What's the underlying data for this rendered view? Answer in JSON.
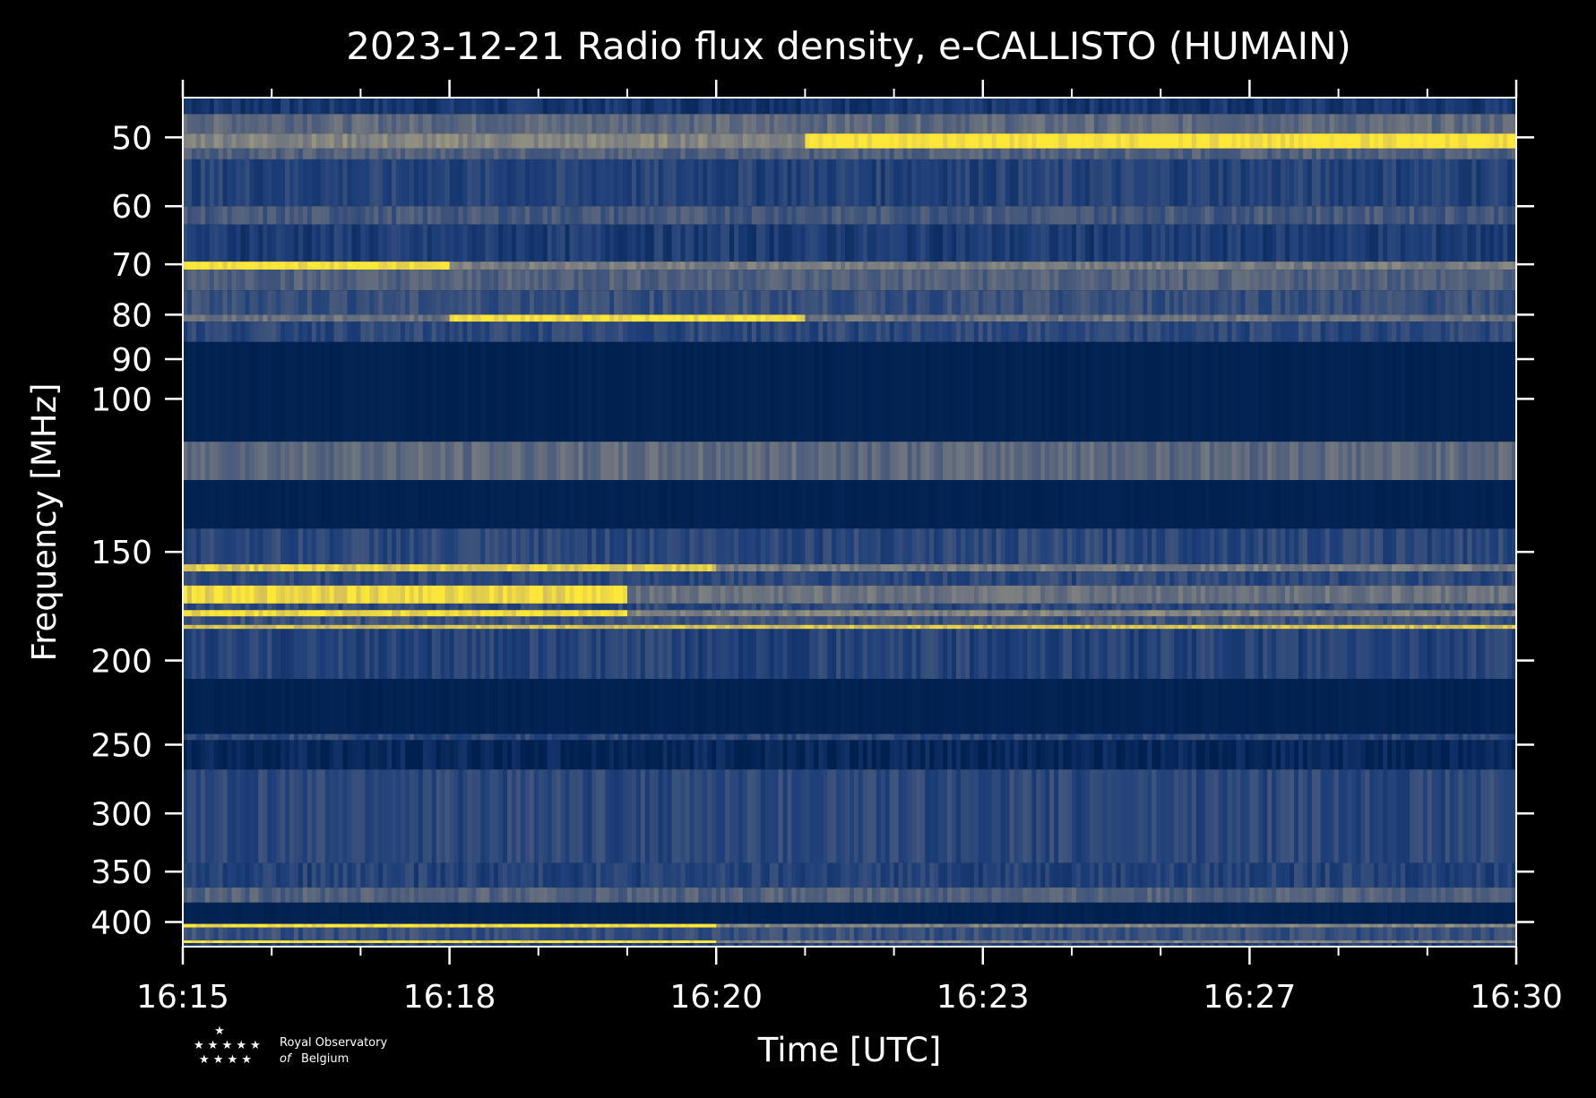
{
  "colors": {
    "background": "#000000",
    "spectrogram_low": "#002050",
    "spectrogram_mid": "#1e3f7a",
    "spectrogram_gray": "#8f8e83",
    "spectrogram_high": "#fde739",
    "axes": "#ffffff"
  },
  "chart_data": {
    "type": "heatmap",
    "title": "2023-12-21 Radio flux density, e-CALLISTO (HUMAIN)",
    "xlabel": "Time [UTC]",
    "ylabel": "Frequency [MHz]",
    "x_tick_labels": [
      "16:15",
      "16:18",
      "16:20",
      "16:23",
      "16:27",
      "16:30"
    ],
    "x_minor_ticks_per_major": 2,
    "xlim": [
      "16:15",
      "16:30"
    ],
    "y_scale": "log",
    "ylim": [
      427,
      45
    ],
    "y_ticks": [
      50,
      60,
      70,
      80,
      90,
      100,
      150,
      200,
      250,
      300,
      350,
      400
    ],
    "y_tick_labels": [
      "50",
      "60",
      "70",
      "80",
      "90",
      "100",
      "150",
      "200",
      "250",
      "300",
      "350",
      "400"
    ],
    "colormap": "cividis",
    "bands": [
      {
        "f_from": 45,
        "f_to": 47,
        "level": 0.15
      },
      {
        "f_from": 47,
        "f_to": 49.5,
        "level": 0.45
      },
      {
        "f_from": 49.5,
        "f_to": 51.5,
        "level": 0.6,
        "bright_from": "16:22",
        "bright_level": 1.0
      },
      {
        "f_from": 51.5,
        "f_to": 53,
        "level": 0.4
      },
      {
        "f_from": 53,
        "f_to": 60,
        "level": 0.22
      },
      {
        "f_from": 60,
        "f_to": 63,
        "level": 0.35
      },
      {
        "f_from": 63,
        "f_to": 69.5,
        "level": 0.18
      },
      {
        "f_from": 69.5,
        "f_to": 71,
        "level": 0.55,
        "bright_until": "16:18",
        "bright_level": 0.98
      },
      {
        "f_from": 71,
        "f_to": 75,
        "level": 0.4
      },
      {
        "f_from": 75,
        "f_to": 80,
        "level": 0.3
      },
      {
        "f_from": 80,
        "f_to": 81.5,
        "level": 0.5,
        "bright_from": "16:18",
        "bright_until": "16:22",
        "bright_level": 0.97
      },
      {
        "f_from": 81.5,
        "f_to": 86,
        "level": 0.25
      },
      {
        "f_from": 86,
        "f_to": 112,
        "level": 0.0
      },
      {
        "f_from": 112,
        "f_to": 124,
        "level": 0.45
      },
      {
        "f_from": 124,
        "f_to": 141,
        "level": 0.0
      },
      {
        "f_from": 141,
        "f_to": 155,
        "level": 0.25
      },
      {
        "f_from": 155,
        "f_to": 158,
        "level": 0.55,
        "bright_until": "16:21",
        "bright_level": 0.9
      },
      {
        "f_from": 158,
        "f_to": 164,
        "level": 0.25
      },
      {
        "f_from": 164,
        "f_to": 172,
        "level": 0.5,
        "bright_until": "16:20",
        "bright_level": 0.95
      },
      {
        "f_from": 172,
        "f_to": 175,
        "level": 0.25
      },
      {
        "f_from": 175,
        "f_to": 178,
        "level": 0.6,
        "bright_until": "16:20",
        "bright_level": 0.95
      },
      {
        "f_from": 178,
        "f_to": 182,
        "level": 0.3
      },
      {
        "f_from": 182,
        "f_to": 184,
        "level": 0.85
      },
      {
        "f_from": 184,
        "f_to": 210,
        "level": 0.22
      },
      {
        "f_from": 210,
        "f_to": 243,
        "level": 0.0
      },
      {
        "f_from": 243,
        "f_to": 247,
        "level": 0.25
      },
      {
        "f_from": 247,
        "f_to": 267,
        "level": 0.04
      },
      {
        "f_from": 267,
        "f_to": 342,
        "level": 0.25
      },
      {
        "f_from": 342,
        "f_to": 365,
        "level": 0.22
      },
      {
        "f_from": 365,
        "f_to": 380,
        "level": 0.4
      },
      {
        "f_from": 380,
        "f_to": 402,
        "level": 0.0
      },
      {
        "f_from": 402,
        "f_to": 406,
        "level": 0.6,
        "bright_until": "16:21",
        "bright_level": 0.98
      },
      {
        "f_from": 406,
        "f_to": 420,
        "level": 0.3
      },
      {
        "f_from": 420,
        "f_to": 423,
        "level": 0.6,
        "bright_until": "16:21",
        "bright_level": 0.98
      },
      {
        "f_from": 423,
        "f_to": 427,
        "level": 0.2
      }
    ]
  },
  "logo": {
    "line1": "Royal Observatory",
    "line2_italic": "of",
    "line2": "Belgium",
    "stars": "★"
  }
}
